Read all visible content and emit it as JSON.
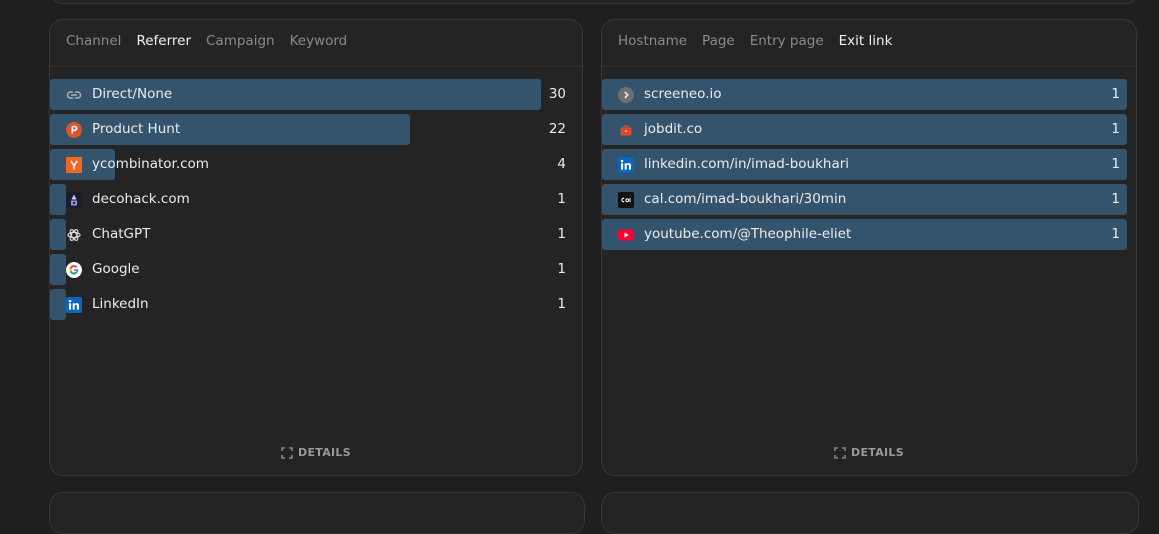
{
  "referrers": {
    "tabs": [
      "Channel",
      "Referrer",
      "Campaign",
      "Keyword"
    ],
    "active_tab": 1,
    "items": [
      {
        "label": "Direct/None",
        "value": "30",
        "count": 30,
        "icon": "link-icon"
      },
      {
        "label": "Product Hunt",
        "value": "22",
        "count": 22,
        "icon": "product-hunt-icon"
      },
      {
        "label": "ycombinator.com",
        "value": "4",
        "count": 4,
        "icon": "ycombinator-icon"
      },
      {
        "label": "decohack.com",
        "value": "1",
        "count": 1,
        "icon": "decohack-icon"
      },
      {
        "label": "ChatGPT",
        "value": "1",
        "count": 1,
        "icon": "chatgpt-icon"
      },
      {
        "label": "Google",
        "value": "1",
        "count": 1,
        "icon": "google-icon"
      },
      {
        "label": "LinkedIn",
        "value": "1",
        "count": 1,
        "icon": "linkedin-icon"
      }
    ],
    "details_label": "DETAILS"
  },
  "exit_links": {
    "tabs": [
      "Hostname",
      "Page",
      "Entry page",
      "Exit link"
    ],
    "active_tab": 3,
    "items": [
      {
        "label": "screeneo.io",
        "value": "1",
        "count": 1,
        "icon": "screeneo-icon"
      },
      {
        "label": "jobdit.co",
        "value": "1",
        "count": 1,
        "icon": "jobdit-icon"
      },
      {
        "label": "linkedin.com/in/imad-boukhari",
        "value": "1",
        "count": 1,
        "icon": "linkedin-icon"
      },
      {
        "label": "cal.com/imad-boukhari/30min",
        "value": "1",
        "count": 1,
        "icon": "cal-icon"
      },
      {
        "label": "youtube.com/@Theophile-eliet",
        "value": "1",
        "count": 1,
        "icon": "youtube-icon"
      }
    ],
    "details_label": "DETAILS"
  },
  "colors": {
    "bar": "#34536d",
    "panel": "#242424",
    "background": "#1f1f1f"
  }
}
